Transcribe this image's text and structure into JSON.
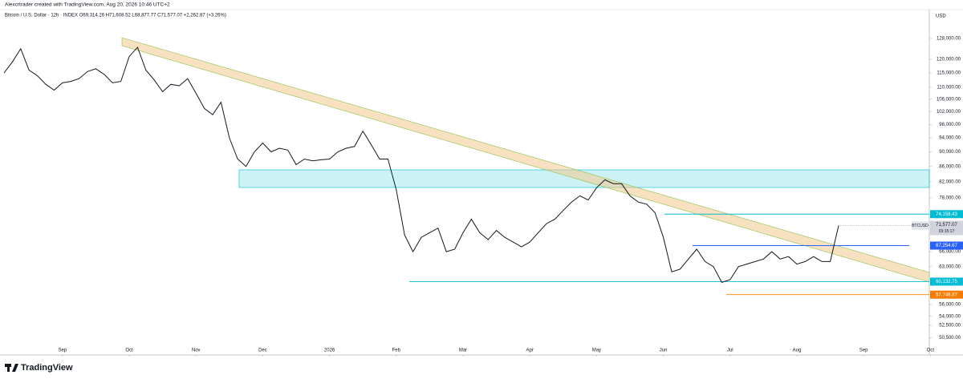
{
  "chart_data": {
    "type": "line",
    "title": "Alexcrtrader created with TradingView.com, Aug 20, 2026 10:46 UTC+2",
    "subtitle": "Bitcoin / U.S. Dollar · 12h · INDEX  O69,314.26 H71,608.52 L68,877.77 C71,577.07 +2,262.87 (+3.26%)",
    "y_axis_label": "USD",
    "brand": "TradingView",
    "log_scale": true,
    "grid": false,
    "color": "#131722",
    "ylim": [
      48000,
      140000
    ],
    "yticks": [
      {
        "value": 128000,
        "label": "128,000.00"
      },
      {
        "value": 120000,
        "label": "120,000.00"
      },
      {
        "value": 115000,
        "label": "115,000.00"
      },
      {
        "value": 110000,
        "label": "110,000.00"
      },
      {
        "value": 106000,
        "label": "106,000.00"
      },
      {
        "value": 102000,
        "label": "102,000.00"
      },
      {
        "value": 98000,
        "label": "98,000.00"
      },
      {
        "value": 94000,
        "label": "94,000.00"
      },
      {
        "value": 90000,
        "label": "90,000.00"
      },
      {
        "value": 86000,
        "label": "86,000.00"
      },
      {
        "value": 82000,
        "label": "82,000.00"
      },
      {
        "value": 78000,
        "label": "78,000.00"
      },
      {
        "value": 66000,
        "label": "66,000.00"
      },
      {
        "value": 63000,
        "label": "63,000.00"
      },
      {
        "value": 56000,
        "label": "56,000.00"
      },
      {
        "value": 54000,
        "label": "54,000.00"
      },
      {
        "value": 52500,
        "label": "52,500.00"
      },
      {
        "value": 50500,
        "label": "50,500.00"
      }
    ],
    "categories": [
      null,
      null,
      null,
      null,
      null,
      null,
      null,
      "Sep",
      null,
      null,
      null,
      null,
      null,
      null,
      null,
      "Oct",
      null,
      null,
      null,
      null,
      null,
      null,
      null,
      "Nov",
      null,
      null,
      null,
      null,
      null,
      null,
      null,
      "Dec",
      null,
      null,
      null,
      null,
      null,
      null,
      null,
      "2026",
      null,
      null,
      null,
      null,
      null,
      null,
      null,
      "Feb",
      null,
      null,
      null,
      null,
      null,
      null,
      null,
      "Mar",
      null,
      null,
      null,
      null,
      null,
      null,
      null,
      "Apr",
      null,
      null,
      null,
      null,
      null,
      null,
      null,
      "May",
      null,
      null,
      null,
      null,
      null,
      null,
      null,
      "Jun",
      null,
      null,
      null,
      null,
      null,
      null,
      null,
      "Jul",
      null,
      null,
      null,
      null,
      null,
      null,
      null,
      "Aug",
      null,
      null,
      null,
      null,
      null,
      null,
      null,
      "Sep",
      null,
      null,
      null,
      null,
      null,
      null,
      null,
      "Oct"
    ],
    "values": [
      115000,
      119000,
      124000,
      116000,
      114000,
      111000,
      109000,
      111500,
      112000,
      113000,
      115500,
      116500,
      114500,
      111500,
      112000,
      121000,
      124500,
      116000,
      112500,
      108500,
      111000,
      110500,
      113000,
      108000,
      103000,
      101000,
      105000,
      94000,
      88000,
      86000,
      90000,
      92500,
      90000,
      91000,
      90500,
      86500,
      88000,
      87500,
      87800,
      88000,
      90000,
      91000,
      91500,
      96000,
      92000,
      88000,
      88000,
      80000,
      69500,
      66000,
      69000,
      70000,
      71000,
      66000,
      66500,
      70000,
      73000,
      70000,
      68500,
      70500,
      69000,
      68000,
      67000,
      68000,
      70000,
      72000,
      73000,
      75000,
      77000,
      78500,
      77500,
      80500,
      82500,
      81500,
      81500,
      78500,
      77000,
      76500,
      74500,
      69000,
      62000,
      62500,
      64500,
      66500,
      64000,
      63000,
      60000,
      60500,
      63000,
      63500,
      64000,
      64500,
      66000,
      64500,
      65000,
      63500,
      64000,
      65000,
      64000,
      64000,
      71577.07,
      null,
      null,
      null,
      null,
      null,
      null,
      null,
      null,
      null,
      null,
      null
    ],
    "levels": [
      {
        "value": 74158.43,
        "label": "74,158.43",
        "color": "#00bcd4"
      },
      {
        "value": 67254.67,
        "label": "67,254.67",
        "color": "#2962ff"
      },
      {
        "value": 60132.75,
        "label": "60,132.75",
        "color": "#00bcd4"
      },
      {
        "value": 57748.87,
        "label": "57,748.87",
        "color": "#f57c00"
      }
    ],
    "last_price": {
      "value": 71577.07,
      "label": "71,577.07",
      "symbol": "BTCUSD",
      "countdown": "03:15:17"
    }
  }
}
